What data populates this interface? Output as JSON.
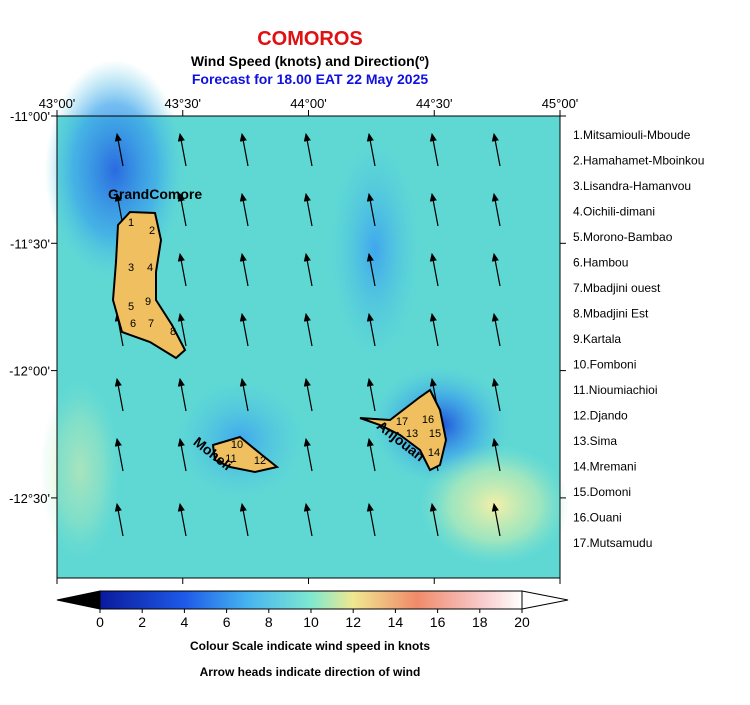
{
  "header": {
    "title": "COMOROS",
    "subtitle": "Wind Speed (knots) and Direction(º)",
    "forecast": "Forecast for  18.00 EAT 22 May 2025"
  },
  "axes": {
    "lon_ticks": [
      "43°00'",
      "43°30'",
      "44°00'",
      "44°30'",
      "45°00'"
    ],
    "lat_ticks": [
      "-11°00'",
      "-11°30'",
      "-12°00'",
      "-12°30'"
    ]
  },
  "islands": [
    {
      "label": "GrandComore",
      "districts": [
        "1",
        "2",
        "3",
        "4",
        "5",
        "6",
        "7",
        "8",
        "9"
      ]
    },
    {
      "label": "Moheli",
      "districts": [
        "10",
        "11",
        "12"
      ]
    },
    {
      "label": "Anjouan",
      "districts": [
        "13",
        "14",
        "15",
        "16",
        "17"
      ]
    }
  ],
  "legend": [
    "1.Mitsamiouli-Mboude",
    "2.Hamahamet-Mboinkou",
    "3.Lisandra-Hamanvou",
    "4.Oichili-dimani",
    "5.Morono-Bambao",
    "6.Hambou",
    "7.Mbadjini ouest",
    "8.Mbadjini Est",
    "9.Kartala",
    "10.Fomboni",
    "11.Nioumiachioi",
    "12.Djando",
    "13.Sima",
    "14.Mremani",
    "15.Domoni",
    "16.Ouani",
    "17.Mutsamudu"
  ],
  "colorbar": {
    "range": [
      0,
      20
    ],
    "ticks": [
      0,
      2,
      4,
      6,
      8,
      10,
      12,
      14,
      16,
      18,
      20
    ]
  },
  "captions": [
    "Colour Scale indicate wind speed in knots",
    "Arrow heads indicate direction of wind"
  ]
}
